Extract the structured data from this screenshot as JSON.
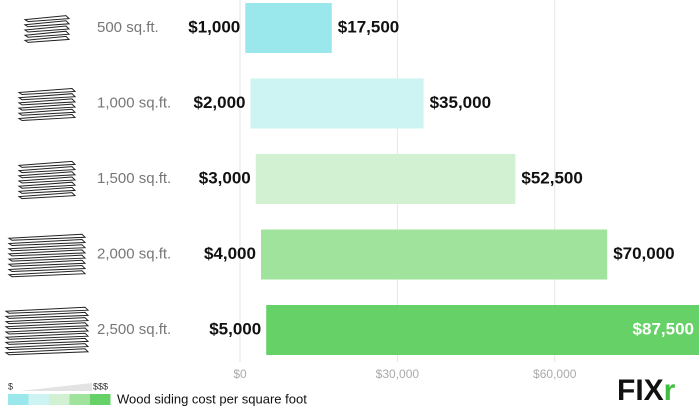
{
  "chart_data": {
    "type": "range-bar",
    "categories": [
      "500 sq.ft.",
      "1,000 sq.ft.",
      "1,500 sq.ft.",
      "2,000 sq.ft.",
      "2,500 sq.ft."
    ],
    "series": [
      {
        "values": [
          1000,
          2000,
          3000,
          4000,
          5000
        ],
        "value_labels": [
          "$1,000",
          "$2,000",
          "$3,000",
          "$4,000",
          "$5,000"
        ]
      },
      {
        "values": [
          17500,
          35000,
          52500,
          70000,
          87500
        ],
        "value_labels": [
          "$17,500",
          "$35,000",
          "$52,500",
          "$70,000",
          "$87,500"
        ]
      }
    ],
    "colors": [
      "#9be8ec",
      "#cdf3f3",
      "#d2f0d2",
      "#9fe39c",
      "#66d166"
    ],
    "xlim": [
      0,
      87500
    ],
    "xticks": [
      {
        "value": 0,
        "label": "$0"
      },
      {
        "value": 30000,
        "label": "$30,000"
      },
      {
        "value": 60000,
        "label": "$60,000"
      }
    ],
    "grid": true,
    "legend": {
      "low": "$",
      "high": "$$$",
      "label": "Wood siding cost per square foot"
    },
    "logo": {
      "text": "FIX",
      "accent": "r"
    }
  }
}
